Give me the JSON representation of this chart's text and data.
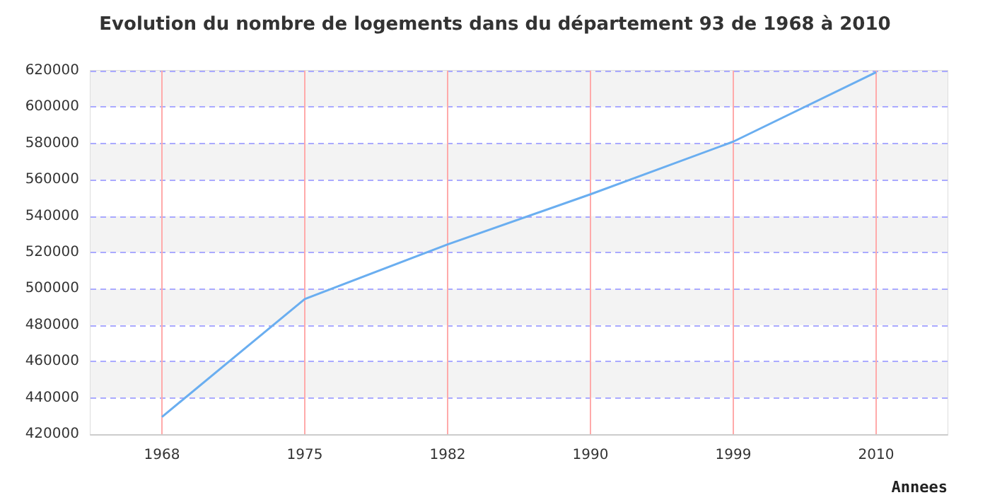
{
  "chart_data": {
    "type": "line",
    "title": "Evolution du nombre de logements dans du département 93 de 1968 à 2010",
    "xlabel": "Annees",
    "categories": [
      "1968",
      "1975",
      "1982",
      "1990",
      "1999",
      "2010"
    ],
    "values": [
      429500,
      494400,
      524400,
      552000,
      581000,
      619200
    ],
    "color": "#6aaef0",
    "ylim": [
      420000,
      620000
    ],
    "yticks": [
      420000,
      440000,
      460000,
      480000,
      500000,
      520000,
      540000,
      560000,
      580000,
      600000,
      620000
    ],
    "grid": true,
    "marker": "none",
    "line_style": "solid"
  }
}
